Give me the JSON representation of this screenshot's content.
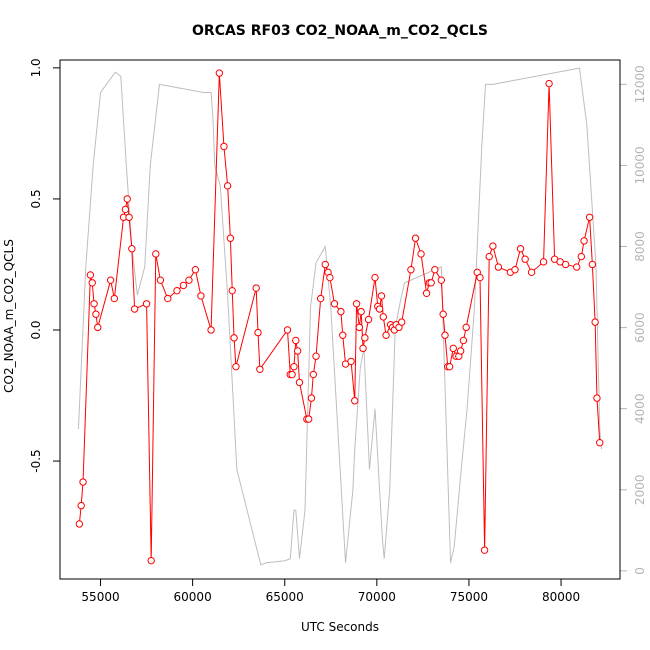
{
  "chart_data": {
    "type": "line",
    "title": "ORCAS RF03 CO2_NOAA_m_CO2_QCLS",
    "xlabel": "UTC Seconds",
    "ylabel": "CO2_NOAA_m_CO2_QCLS",
    "xlim": [
      52800,
      83200
    ],
    "ylim": [
      -0.95,
      1.03
    ],
    "y2lim": [
      -200,
      12600
    ],
    "x_ticks": [
      55000,
      60000,
      65000,
      70000,
      75000,
      80000
    ],
    "y_ticks": [
      -0.5,
      0.0,
      0.5,
      1.0
    ],
    "y2_ticks": [
      0,
      2000,
      4000,
      6000,
      8000,
      10000,
      12000
    ],
    "colors": {
      "series": "#ff0000",
      "altitude": "#bebebe",
      "right_axis": "#b4b4b4"
    },
    "grid": false,
    "series": [
      {
        "color": "#ff0000",
        "points": [
          [
            53850,
            -0.74
          ],
          [
            53950,
            -0.67
          ],
          [
            54050,
            -0.58
          ],
          [
            54450,
            0.21
          ],
          [
            54550,
            0.18
          ],
          [
            54650,
            0.1
          ],
          [
            54750,
            0.06
          ],
          [
            54850,
            0.01
          ],
          [
            55550,
            0.19
          ],
          [
            55750,
            0.12
          ],
          [
            56250,
            0.43
          ],
          [
            56350,
            0.46
          ],
          [
            56450,
            0.5
          ],
          [
            56550,
            0.43
          ],
          [
            56700,
            0.31
          ],
          [
            56850,
            0.08
          ],
          [
            57500,
            0.1
          ],
          [
            57750,
            -0.88
          ],
          [
            58000,
            0.29
          ],
          [
            58250,
            0.19
          ],
          [
            58650,
            0.12
          ],
          [
            59150,
            0.15
          ],
          [
            59500,
            0.17
          ],
          [
            59800,
            0.19
          ],
          [
            60150,
            0.23
          ],
          [
            60450,
            0.13
          ],
          [
            61000,
            0.0
          ],
          [
            61450,
            0.98
          ],
          [
            61700,
            0.7
          ],
          [
            61900,
            0.55
          ],
          [
            62050,
            0.35
          ],
          [
            62150,
            0.15
          ],
          [
            62250,
            -0.03
          ],
          [
            62350,
            -0.14
          ],
          [
            63450,
            0.16
          ],
          [
            63550,
            -0.01
          ],
          [
            63650,
            -0.15
          ],
          [
            65150,
            0.0
          ],
          [
            65300,
            -0.17
          ],
          [
            65400,
            -0.17
          ],
          [
            65500,
            -0.14
          ],
          [
            65600,
            -0.04
          ],
          [
            65700,
            -0.08
          ],
          [
            65800,
            -0.2
          ],
          [
            66200,
            -0.34
          ],
          [
            66300,
            -0.34
          ],
          [
            66450,
            -0.26
          ],
          [
            66550,
            -0.17
          ],
          [
            66700,
            -0.1
          ],
          [
            66950,
            0.12
          ],
          [
            67200,
            0.25
          ],
          [
            67350,
            0.22
          ],
          [
            67450,
            0.2
          ],
          [
            67700,
            0.1
          ],
          [
            68050,
            0.07
          ],
          [
            68150,
            -0.02
          ],
          [
            68300,
            -0.13
          ],
          [
            68600,
            -0.12
          ],
          [
            68800,
            -0.27
          ],
          [
            68900,
            0.1
          ],
          [
            69050,
            0.01
          ],
          [
            69150,
            0.07
          ],
          [
            69250,
            -0.07
          ],
          [
            69350,
            -0.03
          ],
          [
            69550,
            0.04
          ],
          [
            69900,
            0.2
          ],
          [
            70050,
            0.09
          ],
          [
            70150,
            0.08
          ],
          [
            70250,
            0.13
          ],
          [
            70350,
            0.05
          ],
          [
            70500,
            -0.02
          ],
          [
            70750,
            0.02
          ],
          [
            70850,
            0.01
          ],
          [
            70950,
            0.0
          ],
          [
            71050,
            0.02
          ],
          [
            71200,
            0.01
          ],
          [
            71350,
            0.03
          ],
          [
            71850,
            0.23
          ],
          [
            72100,
            0.35
          ],
          [
            72400,
            0.29
          ],
          [
            72700,
            0.14
          ],
          [
            72850,
            0.18
          ],
          [
            72950,
            0.18
          ],
          [
            73150,
            0.23
          ],
          [
            73500,
            0.19
          ],
          [
            73600,
            0.06
          ],
          [
            73700,
            -0.02
          ],
          [
            73850,
            -0.14
          ],
          [
            73950,
            -0.14
          ],
          [
            74150,
            -0.07
          ],
          [
            74300,
            -0.1
          ],
          [
            74450,
            -0.1
          ],
          [
            74550,
            -0.08
          ],
          [
            74700,
            -0.04
          ],
          [
            74850,
            0.01
          ],
          [
            75450,
            0.22
          ],
          [
            75600,
            0.2
          ],
          [
            75850,
            -0.84
          ],
          [
            76100,
            0.28
          ],
          [
            76300,
            0.32
          ],
          [
            76600,
            0.24
          ],
          [
            77250,
            0.22
          ],
          [
            77500,
            0.23
          ],
          [
            77800,
            0.31
          ],
          [
            78050,
            0.27
          ],
          [
            78400,
            0.22
          ],
          [
            79050,
            0.26
          ],
          [
            79350,
            0.94
          ],
          [
            79650,
            0.27
          ],
          [
            79950,
            0.26
          ],
          [
            80250,
            0.25
          ],
          [
            80850,
            0.24
          ],
          [
            81100,
            0.28
          ],
          [
            81250,
            0.34
          ],
          [
            81550,
            0.43
          ],
          [
            81700,
            0.25
          ],
          [
            81850,
            0.03
          ],
          [
            81950,
            -0.26
          ],
          [
            82100,
            -0.43
          ]
        ]
      },
      {
        "color": "#bebebe",
        "axis": "right",
        "points": [
          [
            53800,
            3500
          ],
          [
            54200,
            7500
          ],
          [
            54600,
            10000
          ],
          [
            55000,
            11800
          ],
          [
            55800,
            12300
          ],
          [
            56100,
            12200
          ],
          [
            56400,
            10000
          ],
          [
            56700,
            8000
          ],
          [
            57000,
            6800
          ],
          [
            57400,
            7500
          ],
          [
            57700,
            10000
          ],
          [
            58200,
            12000
          ],
          [
            60600,
            11800
          ],
          [
            61000,
            11800
          ],
          [
            61100,
            11200
          ],
          [
            61200,
            10000
          ],
          [
            61500,
            9500
          ],
          [
            61900,
            6800
          ],
          [
            62400,
            2500
          ],
          [
            63700,
            150
          ],
          [
            64000,
            200
          ],
          [
            65000,
            250
          ],
          [
            65300,
            300
          ],
          [
            65500,
            1500
          ],
          [
            65600,
            1500
          ],
          [
            65800,
            300
          ],
          [
            66100,
            1500
          ],
          [
            66400,
            6500
          ],
          [
            66700,
            7600
          ],
          [
            67200,
            8000
          ],
          [
            67500,
            6500
          ],
          [
            68300,
            200
          ],
          [
            68700,
            2000
          ],
          [
            68800,
            3000
          ],
          [
            69100,
            5000
          ],
          [
            69300,
            5500
          ],
          [
            69600,
            2500
          ],
          [
            69900,
            4000
          ],
          [
            70300,
            800
          ],
          [
            70400,
            300
          ],
          [
            70700,
            2000
          ],
          [
            71000,
            6000
          ],
          [
            71300,
            6700
          ],
          [
            71500,
            7100
          ],
          [
            73500,
            7500
          ],
          [
            74000,
            200
          ],
          [
            74200,
            600
          ],
          [
            74600,
            2600
          ],
          [
            74900,
            4000
          ],
          [
            75300,
            6500
          ],
          [
            75700,
            10500
          ],
          [
            75900,
            12000
          ],
          [
            76300,
            12000
          ],
          [
            81000,
            12400
          ],
          [
            81400,
            11000
          ],
          [
            81900,
            7500
          ],
          [
            82100,
            3500
          ],
          [
            82200,
            3000
          ]
        ]
      }
    ]
  }
}
